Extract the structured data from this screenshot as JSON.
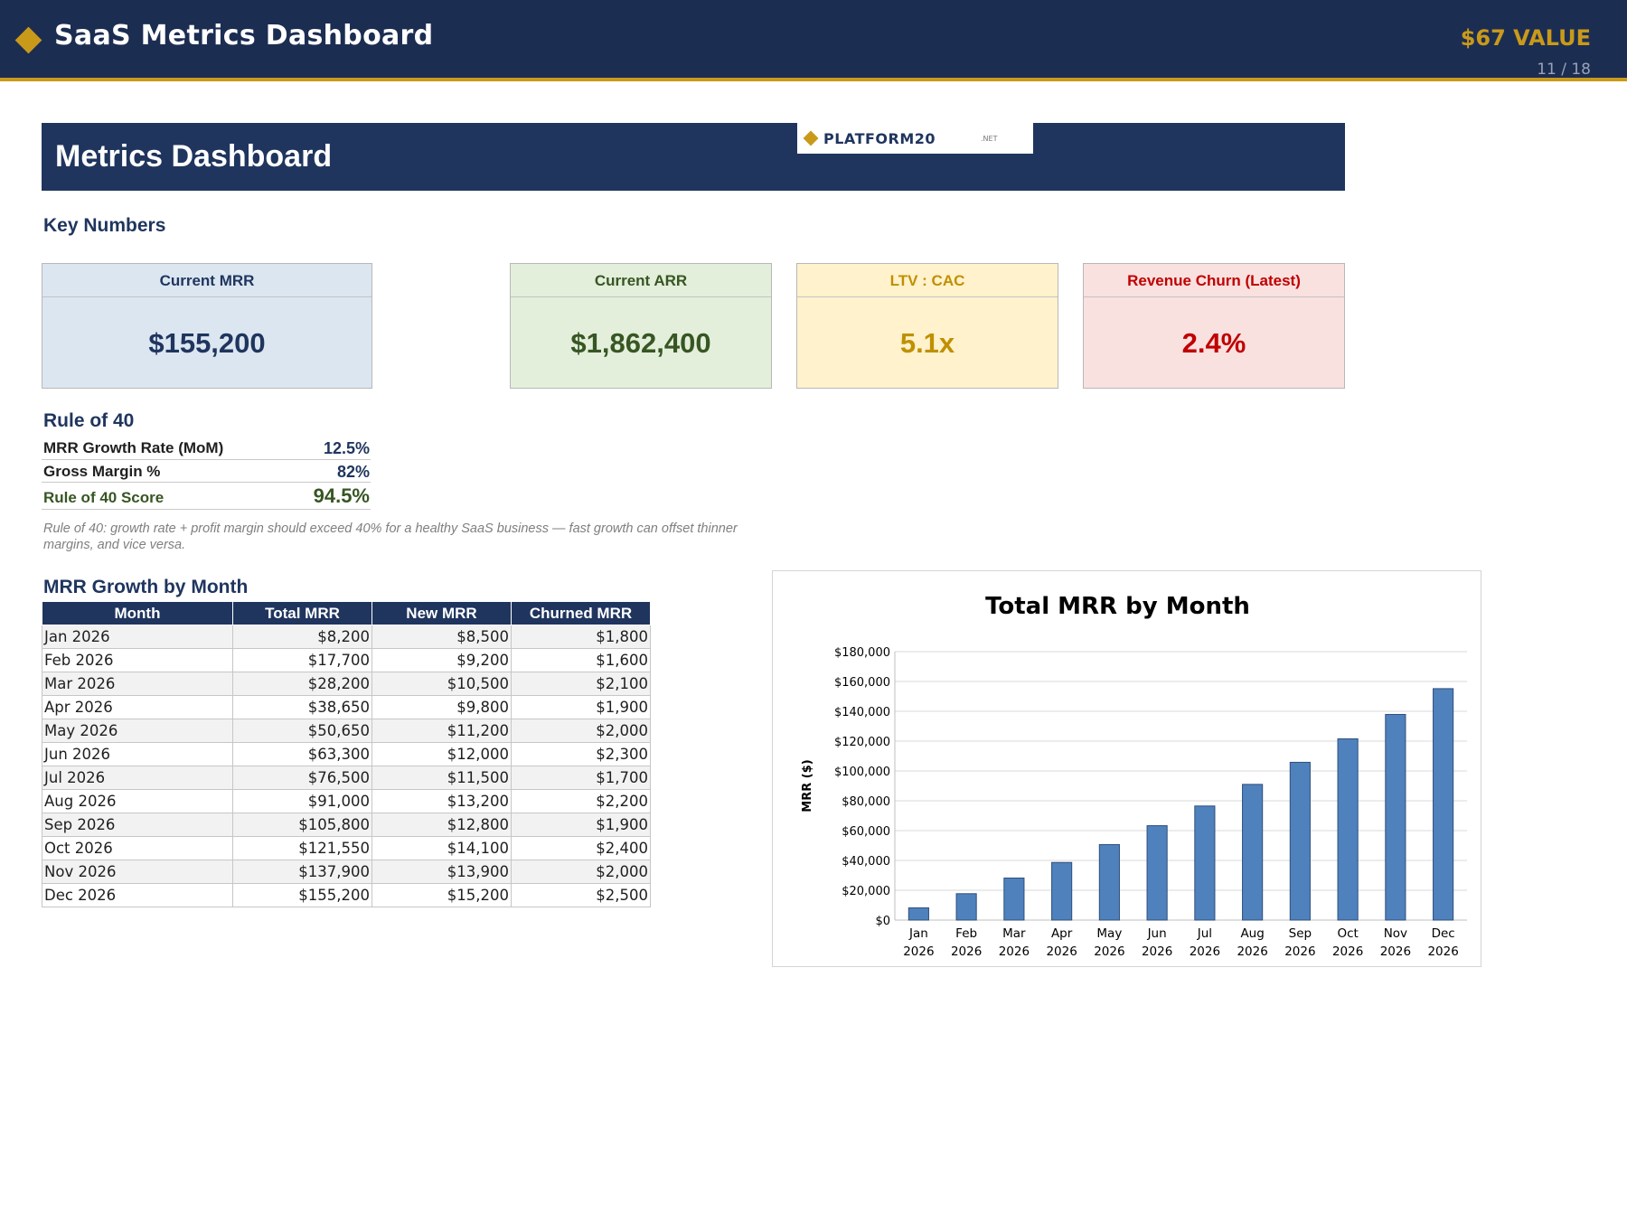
{
  "header": {
    "title": "SaaS Metrics Dashboard",
    "value_badge": "$67 VALUE",
    "page_indicator": "11 / 18",
    "icon": "diamond-icon",
    "colors": {
      "navy": "#1c2d52",
      "gold": "#c99a1a"
    }
  },
  "sheet": {
    "title": "Metrics Dashboard",
    "logo": {
      "name": "PLATFORM20",
      "suffix": ".NET",
      "icon": "diamond-icon"
    }
  },
  "key_numbers": {
    "heading": "Key Numbers",
    "cards": [
      {
        "label": "Current MRR",
        "value": "$155,200",
        "bg": "#dce6f1",
        "color": "#1f355e"
      },
      {
        "label": "Current ARR",
        "value": "$1,862,400",
        "bg": "#e3efdb",
        "color": "#375623"
      },
      {
        "label": "LTV : CAC",
        "value": "5.1x",
        "bg": "#fff2cc",
        "color": "#bf9000"
      },
      {
        "label": "Revenue Churn (Latest)",
        "value": "2.4%",
        "bg": "#f9e1e0",
        "color": "#c00000"
      }
    ]
  },
  "rule_of_40": {
    "heading": "Rule of 40",
    "rows": [
      {
        "label": "MRR Growth Rate (MoM)",
        "value": "12.5%"
      },
      {
        "label": "Gross Margin %",
        "value": "82%"
      },
      {
        "label": "Rule of 40 Score",
        "value": "94.5%"
      }
    ],
    "score_color": "#375623",
    "note": "Rule of 40: growth rate + profit margin should exceed 40% for a healthy SaaS business — fast growth can offset thinner margins, and vice versa."
  },
  "mrr_table": {
    "heading": "MRR Growth by Month",
    "columns": [
      "Month",
      "Total MRR",
      "New MRR",
      "Churned MRR"
    ],
    "rows": [
      [
        "Jan 2026",
        "$8,200",
        "$8,500",
        "$1,800"
      ],
      [
        "Feb 2026",
        "$17,700",
        "$9,200",
        "$1,600"
      ],
      [
        "Mar 2026",
        "$28,200",
        "$10,500",
        "$2,100"
      ],
      [
        "Apr 2026",
        "$38,650",
        "$9,800",
        "$1,900"
      ],
      [
        "May 2026",
        "$50,650",
        "$11,200",
        "$2,000"
      ],
      [
        "Jun 2026",
        "$63,300",
        "$12,000",
        "$2,300"
      ],
      [
        "Jul 2026",
        "$76,500",
        "$11,500",
        "$1,700"
      ],
      [
        "Aug 2026",
        "$91,000",
        "$13,200",
        "$2,200"
      ],
      [
        "Sep 2026",
        "$105,800",
        "$12,800",
        "$1,900"
      ],
      [
        "Oct 2026",
        "$121,550",
        "$14,100",
        "$2,400"
      ],
      [
        "Nov 2026",
        "$137,900",
        "$13,900",
        "$2,000"
      ],
      [
        "Dec 2026",
        "$155,200",
        "$15,200",
        "$2,500"
      ]
    ]
  },
  "chart_data": {
    "type": "bar",
    "title": "Total MRR by Month",
    "xlabel": "",
    "ylabel": "MRR ($)",
    "categories": [
      [
        "Jan",
        "2026"
      ],
      [
        "Feb",
        "2026"
      ],
      [
        "Mar",
        "2026"
      ],
      [
        "Apr",
        "2026"
      ],
      [
        "May",
        "2026"
      ],
      [
        "Jun",
        "2026"
      ],
      [
        "Jul",
        "2026"
      ],
      [
        "Aug",
        "2026"
      ],
      [
        "Sep",
        "2026"
      ],
      [
        "Oct",
        "2026"
      ],
      [
        "Nov",
        "2026"
      ],
      [
        "Dec",
        "2026"
      ]
    ],
    "values": [
      8200,
      17700,
      28200,
      38650,
      50650,
      63300,
      76500,
      91000,
      105800,
      121550,
      137900,
      155200
    ],
    "ylim": [
      0,
      180000
    ],
    "yticks": [
      0,
      20000,
      40000,
      60000,
      80000,
      100000,
      120000,
      140000,
      160000,
      180000
    ],
    "ytick_labels": [
      "$0",
      "$20,000",
      "$40,000",
      "$60,000",
      "$80,000",
      "$100,000",
      "$120,000",
      "$140,000",
      "$160,000",
      "$180,000"
    ],
    "grid": true,
    "legend": "none",
    "bar_color": "#4f81bd"
  }
}
